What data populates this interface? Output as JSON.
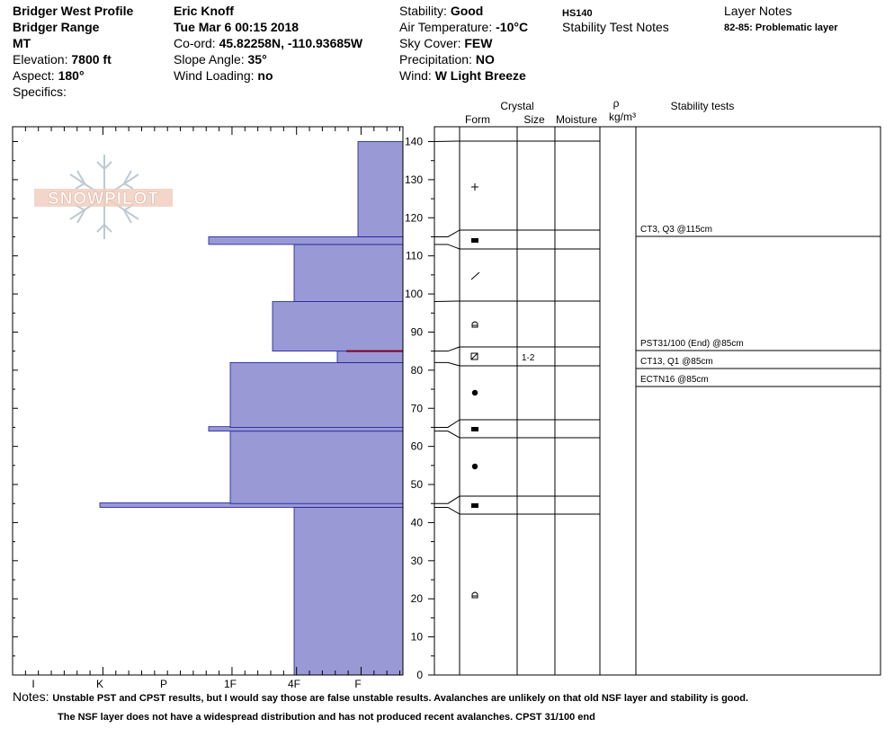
{
  "header": {
    "col1": [
      {
        "label": "",
        "value": "Bridger West Profile"
      },
      {
        "label": "",
        "value": "Bridger Range"
      },
      {
        "label": "",
        "value": "MT"
      },
      {
        "label": "Elevation: ",
        "value": "7800 ft"
      },
      {
        "label": "Aspect: ",
        "value": "180°"
      },
      {
        "label": "Specifics:",
        "value": ""
      }
    ],
    "col2": [
      {
        "label": "",
        "value": "Eric Knoff"
      },
      {
        "label": "",
        "value": "Tue Mar 6 00:15 2018"
      },
      {
        "label": "Co-ord: ",
        "value": "45.82258N, -110.93685W"
      },
      {
        "label": "Slope Angle: ",
        "value": "35°"
      },
      {
        "label": "Wind Loading: ",
        "value": "no"
      }
    ],
    "col3": [
      {
        "label": "Stability: ",
        "value": "Good"
      },
      {
        "label": "Air Temperature: ",
        "value": "-10°C"
      },
      {
        "label": "Sky Cover: ",
        "value": "FEW"
      },
      {
        "label": "Precipitation: ",
        "value": "NO"
      },
      {
        "label": "Wind:  ",
        "value": "W Light Breeze"
      }
    ],
    "hs": "HS140",
    "stability_test_notes": "Stability Test Notes",
    "layer_notes_title": "Layer Notes",
    "layer_note": "82-85: Problematic layer"
  },
  "logo_text": "SNOWPILOT",
  "column_headers": {
    "crystal": "Crystal",
    "form": "Form",
    "size": "Size",
    "moisture": "Moisture",
    "rho": "ρ",
    "density_unit": "kg/m³",
    "stability_tests": "Stability tests"
  },
  "hardness_axis": {
    "labels": [
      "I",
      "K",
      "P",
      "1F",
      "4F",
      "F"
    ]
  },
  "depth_axis": {
    "min": 0,
    "max": 140,
    "step": 10,
    "labels": [
      0,
      10,
      20,
      30,
      40,
      50,
      60,
      70,
      80,
      90,
      100,
      110,
      120,
      130,
      140
    ]
  },
  "chart_data": {
    "type": "bar",
    "title": "",
    "xlabel": "",
    "ylabel": "",
    "x_categories": [
      "F",
      "4F",
      "1F",
      "P",
      "K",
      "I"
    ],
    "ylim": [
      0,
      140
    ],
    "hardness_profile": [
      {
        "bottom": 0,
        "top": 44,
        "hardness": "4F"
      },
      {
        "bottom": 44,
        "top": 45,
        "hardness": "K"
      },
      {
        "bottom": 45,
        "top": 64,
        "hardness": "1F"
      },
      {
        "bottom": 64,
        "top": 65,
        "hardness": "1F-"
      },
      {
        "bottom": 65,
        "top": 82,
        "hardness": "1F"
      },
      {
        "bottom": 82,
        "top": 85,
        "hardness": "F+"
      },
      {
        "bottom": 85,
        "top": 98,
        "hardness": "4F-"
      },
      {
        "bottom": 98,
        "top": 113,
        "hardness": "4F"
      },
      {
        "bottom": 113,
        "top": 115,
        "hardness": "1F-"
      },
      {
        "bottom": 115,
        "top": 140,
        "hardness": "F"
      }
    ],
    "layer_boundaries_cm": [
      140,
      115,
      113,
      98,
      85,
      82,
      65,
      64,
      45,
      44,
      0
    ],
    "crystal_forms": [
      {
        "depth": 128,
        "symbol": "+",
        "size": ""
      },
      {
        "depth": 114,
        "symbol": "▬",
        "size": ""
      },
      {
        "depth": 105,
        "symbol": "/",
        "size": ""
      },
      {
        "depth": 92,
        "symbol": "⌂",
        "size": ""
      },
      {
        "depth": 84,
        "symbol": "⊠",
        "size": "1-2"
      },
      {
        "depth": 74,
        "symbol": "●",
        "size": ""
      },
      {
        "depth": 64,
        "symbol": "▬",
        "size": ""
      },
      {
        "depth": 55,
        "symbol": "●",
        "size": ""
      },
      {
        "depth": 44,
        "symbol": "▬",
        "size": ""
      },
      {
        "depth": 21,
        "symbol": "⌂",
        "size": ""
      }
    ],
    "stability_tests": [
      {
        "text": "CT3, Q3 @115cm",
        "depth": 115
      },
      {
        "text": "PST31/100 (End) @85cm",
        "depth": 85
      },
      {
        "text": "CT13, Q1 @85cm",
        "depth": 85
      },
      {
        "text": "ECTN16 @85cm",
        "depth": 85
      }
    ]
  },
  "notes": {
    "label": "Notes:",
    "line1": "Unstable PST and CPST results, but I would say those are false unstable results. Avalanches are unlikely on that old NSF layer and stability is good.",
    "line2": "The NSF layer does not have a widespread distribution and has not produced recent avalanches.  CPST 31/100 end"
  },
  "colors": {
    "fill": "#9999d6",
    "edge": "#1a1a99",
    "weak_layer": "#800020"
  }
}
